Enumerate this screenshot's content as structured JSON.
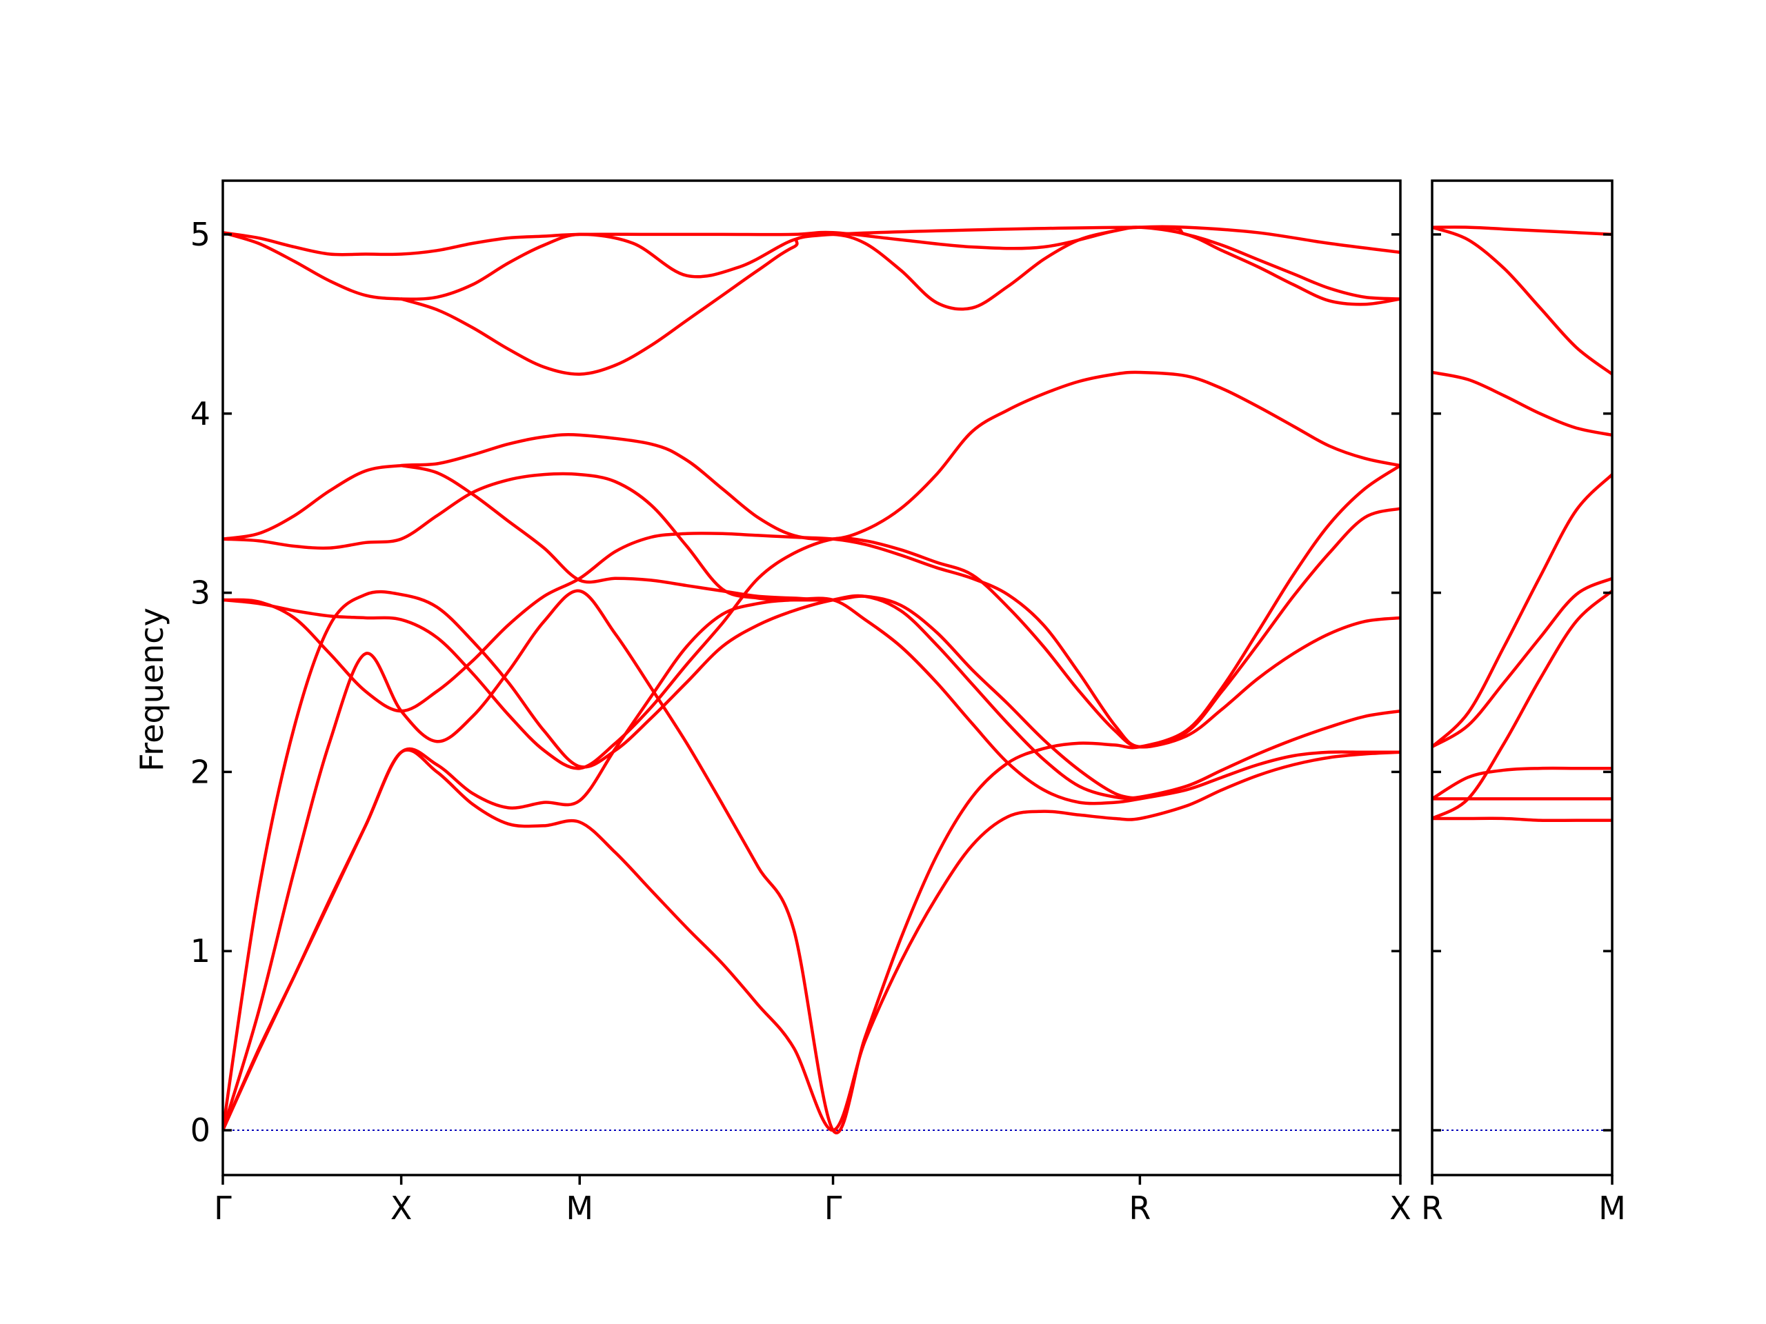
{
  "chart_data": {
    "type": "line",
    "ylabel": "Frequency",
    "ylim": [
      -0.25,
      5.3
    ],
    "yticks": [
      0,
      1,
      2,
      3,
      4,
      5
    ],
    "grid": false,
    "legend": "none",
    "line_color": "#ff0000",
    "zero_line_color": "#0000bb",
    "panels": [
      {
        "name": "main",
        "xlim": [
          0,
          3.3
        ],
        "xticks": [
          {
            "x": 0,
            "label": "Γ"
          },
          {
            "x": 0.5,
            "label": "X"
          },
          {
            "x": 1.0,
            "label": "M"
          },
          {
            "x": 1.71,
            "label": "Γ"
          },
          {
            "x": 2.57,
            "label": "R"
          },
          {
            "x": 3.3,
            "label": "X"
          }
        ],
        "series": [
          {
            "x": [
              0,
              0.1,
              0.2,
              0.3,
              0.4,
              0.5,
              0.6,
              0.7,
              0.8,
              0.9,
              1.0,
              1.2,
              1.4,
              1.6,
              1.71,
              1.9,
              2.1,
              2.3,
              2.5,
              2.57,
              2.7,
              2.9,
              3.1,
              3.3
            ],
            "y": [
              5.01,
              4.98,
              4.93,
              4.89,
              4.89,
              4.89,
              4.91,
              4.95,
              4.98,
              4.99,
              5.0,
              5.0,
              5.0,
              5.0,
              5.01,
              4.97,
              4.93,
              4.93,
              5.02,
              5.04,
              5.04,
              5.01,
              4.95,
              4.9
            ]
          },
          {
            "x": [
              0,
              0.1,
              0.2,
              0.3,
              0.4,
              0.5,
              0.6,
              0.7,
              0.8,
              0.9,
              1.0,
              1.15,
              1.3,
              1.45,
              1.6,
              1.71,
              1.8,
              1.9,
              2.0,
              2.1,
              2.2,
              2.3,
              2.4,
              2.5,
              2.57,
              2.7,
              2.8,
              2.9,
              3.0,
              3.1,
              3.2,
              3.3
            ],
            "y": [
              5.01,
              4.95,
              4.85,
              4.74,
              4.66,
              4.64,
              4.65,
              4.72,
              4.84,
              4.94,
              5.0,
              4.95,
              4.77,
              4.82,
              4.97,
              5.0,
              4.95,
              4.8,
              4.62,
              4.59,
              4.71,
              4.86,
              4.97,
              5.02,
              5.04,
              5.0,
              4.91,
              4.82,
              4.72,
              4.63,
              4.61,
              4.64
            ]
          },
          {
            "x": [
              0.5,
              0.6,
              0.7,
              0.8,
              0.9,
              1.0,
              1.1,
              1.2,
              1.3,
              1.4,
              1.5,
              1.6,
              1.71,
              2.57,
              2.7,
              2.8,
              2.9,
              3.0,
              3.1,
              3.2,
              3.3
            ],
            "y": [
              4.64,
              4.58,
              4.48,
              4.36,
              4.26,
              4.22,
              4.27,
              4.38,
              4.52,
              4.66,
              4.8,
              4.93,
              5.0,
              5.04,
              5.0,
              4.94,
              4.86,
              4.78,
              4.7,
              4.65,
              4.64
            ]
          },
          {
            "x": [
              0,
              0.1,
              0.2,
              0.3,
              0.4,
              0.5,
              0.6,
              0.7,
              0.8,
              0.9,
              1.0,
              1.2,
              1.3,
              1.4,
              1.5,
              1.6,
              1.71,
              1.8,
              1.9,
              2.0,
              2.1,
              2.2,
              2.3,
              2.4,
              2.5,
              2.57,
              2.7,
              2.8,
              2.9,
              3.0,
              3.1,
              3.2,
              3.3
            ],
            "y": [
              3.3,
              3.33,
              3.43,
              3.57,
              3.68,
              3.71,
              3.72,
              3.77,
              3.83,
              3.87,
              3.88,
              3.83,
              3.74,
              3.58,
              3.42,
              3.32,
              3.3,
              3.35,
              3.47,
              3.66,
              3.9,
              4.02,
              4.11,
              4.18,
              4.22,
              4.23,
              4.21,
              4.14,
              4.04,
              3.93,
              3.82,
              3.75,
              3.71
            ]
          },
          {
            "x": [
              0,
              0.1,
              0.2,
              0.3,
              0.4,
              0.5,
              0.6,
              0.7,
              0.8,
              0.9,
              1.0,
              1.1,
              1.2,
              1.3,
              1.4,
              1.5,
              1.6,
              1.71
            ],
            "y": [
              3.3,
              3.29,
              3.26,
              3.25,
              3.28,
              3.3,
              3.43,
              3.56,
              3.63,
              3.66,
              3.66,
              3.62,
              3.49,
              3.26,
              3.02,
              2.97,
              2.96,
              2.96
            ]
          },
          {
            "x": [
              0.5,
              0.6,
              0.7,
              0.8,
              0.9,
              1.0,
              1.1,
              1.2,
              1.3,
              1.4,
              1.5,
              1.6,
              1.71,
              1.8,
              1.9,
              2.0,
              2.1,
              2.2,
              2.3,
              2.4,
              2.5,
              2.57
            ],
            "y": [
              3.71,
              3.67,
              3.55,
              3.4,
              3.25,
              3.07,
              3.08,
              3.07,
              3.04,
              3.01,
              2.98,
              2.97,
              2.96,
              2.98,
              2.93,
              2.78,
              2.57,
              2.38,
              2.18,
              2.01,
              1.88,
              1.85
            ]
          },
          {
            "x": [
              0,
              0.1,
              0.2,
              0.3,
              0.4,
              0.5,
              0.6,
              0.7,
              0.8,
              0.9,
              1.0,
              1.1,
              1.2,
              1.3,
              1.4,
              1.5,
              1.6,
              1.71,
              1.8,
              1.9,
              2.0,
              2.1,
              2.2,
              2.3,
              2.4,
              2.5,
              2.57,
              2.7,
              2.8,
              2.9,
              3.0,
              3.1,
              3.2,
              3.3
            ],
            "y": [
              2.96,
              2.94,
              2.9,
              2.87,
              2.86,
              2.85,
              2.75,
              2.55,
              2.32,
              2.12,
              2.02,
              2.16,
              2.36,
              2.6,
              2.83,
              3.08,
              3.22,
              3.3,
              3.29,
              3.24,
              3.17,
              3.1,
              2.92,
              2.7,
              2.45,
              2.23,
              2.14,
              2.2,
              2.35,
              2.52,
              2.66,
              2.77,
              2.84,
              2.86
            ]
          },
          {
            "x": [
              0,
              0.1,
              0.2,
              0.3,
              0.4,
              0.5,
              0.6,
              0.7,
              0.8,
              0.9,
              1.0,
              1.1,
              1.2,
              1.3,
              1.4,
              1.5,
              1.6,
              1.71,
              1.8,
              1.9,
              2.0,
              2.1,
              2.2,
              2.3,
              2.4,
              2.5,
              2.57,
              2.7,
              2.8,
              2.9,
              3.0,
              3.1,
              3.2,
              3.3
            ],
            "y": [
              2.96,
              2.95,
              2.86,
              2.66,
              2.45,
              2.34,
              2.45,
              2.62,
              2.82,
              2.98,
              3.08,
              3.23,
              3.31,
              3.33,
              3.33,
              3.32,
              3.31,
              3.3,
              3.27,
              3.21,
              3.14,
              3.08,
              2.99,
              2.82,
              2.55,
              2.26,
              2.14,
              2.22,
              2.45,
              2.71,
              2.98,
              3.22,
              3.42,
              3.47
            ]
          },
          {
            "x": [
              0,
              0.1,
              0.2,
              0.3,
              0.4,
              0.5,
              0.6,
              0.7,
              0.8,
              0.9,
              1.0,
              1.1,
              1.2,
              1.3,
              1.4,
              1.5,
              1.6,
              1.71,
              1.8,
              1.9,
              2.0,
              2.1,
              2.2,
              2.3,
              2.4,
              2.5,
              2.57,
              2.7,
              2.8,
              2.9,
              3.0,
              3.1,
              3.2,
              3.3
            ],
            "y": [
              0.0,
              0.66,
              1.45,
              2.17,
              2.66,
              2.34,
              2.17,
              2.31,
              2.56,
              2.84,
              3.01,
              2.77,
              2.47,
              2.16,
              1.82,
              1.47,
              1.12,
              0.0,
              0.52,
              1.07,
              1.53,
              1.86,
              2.05,
              2.13,
              2.16,
              2.15,
              2.14,
              2.23,
              2.47,
              2.78,
              3.1,
              3.38,
              3.58,
              3.71
            ]
          },
          {
            "x": [
              0,
              0.1,
              0.2,
              0.3,
              0.4,
              0.5,
              0.6,
              0.7,
              0.8,
              0.9,
              1.0,
              1.1,
              1.2,
              1.3,
              1.4,
              1.5,
              1.6,
              1.71,
              1.8,
              1.9,
              2.0,
              2.1,
              2.2,
              2.3,
              2.4,
              2.5,
              2.57,
              2.7,
              2.8,
              2.9,
              3.0,
              3.1,
              3.2,
              3.3
            ],
            "y": [
              0.0,
              1.33,
              2.25,
              2.82,
              2.99,
              2.99,
              2.92,
              2.73,
              2.5,
              2.23,
              2.03,
              2.12,
              2.3,
              2.5,
              2.7,
              2.82,
              2.9,
              2.96,
              2.98,
              2.9,
              2.71,
              2.49,
              2.27,
              2.07,
              1.92,
              1.86,
              1.86,
              1.92,
              2.01,
              2.1,
              2.18,
              2.25,
              2.31,
              2.34
            ]
          },
          {
            "x": [
              0,
              0.1,
              0.2,
              0.3,
              0.4,
              0.5,
              0.6,
              0.7,
              0.8,
              0.9,
              1.0,
              1.1,
              1.2,
              1.3,
              1.4,
              1.5,
              1.6,
              1.71,
              1.8,
              1.9,
              2.0,
              2.1,
              2.2,
              2.3,
              2.4,
              2.5,
              2.57,
              2.7,
              2.8,
              2.9,
              3.0,
              3.1,
              3.2,
              3.3
            ],
            "y": [
              0.0,
              0.44,
              0.86,
              1.29,
              1.7,
              2.11,
              2.04,
              1.88,
              1.8,
              1.83,
              1.84,
              2.13,
              2.42,
              2.7,
              2.88,
              2.94,
              2.96,
              2.96,
              2.85,
              2.7,
              2.5,
              2.27,
              2.05,
              1.9,
              1.83,
              1.83,
              1.85,
              1.9,
              1.97,
              2.04,
              2.09,
              2.11,
              2.11,
              2.11
            ]
          },
          {
            "x": [
              0,
              0.1,
              0.2,
              0.3,
              0.4,
              0.5,
              0.6,
              0.7,
              0.8,
              0.9,
              1.0,
              1.1,
              1.2,
              1.3,
              1.4,
              1.5,
              1.6,
              1.71,
              1.8,
              1.9,
              2.0,
              2.1,
              2.2,
              2.3,
              2.4,
              2.5,
              2.57,
              2.7,
              2.8,
              2.9,
              3.0,
              3.1,
              3.2,
              3.3
            ],
            "y": [
              0.0,
              0.45,
              0.86,
              1.28,
              1.7,
              2.11,
              2.0,
              1.82,
              1.71,
              1.7,
              1.72,
              1.55,
              1.34,
              1.13,
              0.93,
              0.7,
              0.46,
              0.0,
              0.5,
              0.94,
              1.3,
              1.59,
              1.75,
              1.78,
              1.76,
              1.74,
              1.74,
              1.81,
              1.9,
              1.98,
              2.04,
              2.08,
              2.1,
              2.11
            ]
          }
        ]
      },
      {
        "name": "side",
        "xlim": [
          0,
          0.5
        ],
        "xticks": [
          {
            "x": 0,
            "label": "R"
          },
          {
            "x": 0.5,
            "label": "M"
          }
        ],
        "series": [
          {
            "x": [
              0,
              0.1,
              0.2,
              0.3,
              0.4,
              0.5
            ],
            "y": [
              5.04,
              5.04,
              5.03,
              5.02,
              5.01,
              5.0
            ]
          },
          {
            "x": [
              0,
              0.1,
              0.2,
              0.3,
              0.4,
              0.5
            ],
            "y": [
              5.04,
              4.97,
              4.81,
              4.59,
              4.37,
              4.22
            ]
          },
          {
            "x": [
              0,
              0.1,
              0.2,
              0.3,
              0.4,
              0.5
            ],
            "y": [
              4.23,
              4.19,
              4.1,
              4.0,
              3.92,
              3.88
            ]
          },
          {
            "x": [
              0,
              0.1,
              0.2,
              0.3,
              0.4,
              0.5
            ],
            "y": [
              2.14,
              2.33,
              2.7,
              3.09,
              3.46,
              3.66
            ]
          },
          {
            "x": [
              0,
              0.1,
              0.2,
              0.3,
              0.4,
              0.5
            ],
            "y": [
              2.14,
              2.26,
              2.5,
              2.75,
              2.99,
              3.08
            ]
          },
          {
            "x": [
              0,
              0.1,
              0.2,
              0.3,
              0.4,
              0.5
            ],
            "y": [
              1.74,
              1.85,
              2.16,
              2.52,
              2.84,
              3.01
            ]
          },
          {
            "x": [
              0,
              0.1,
              0.2,
              0.3,
              0.4,
              0.5
            ],
            "y": [
              1.85,
              1.97,
              2.01,
              2.02,
              2.02,
              2.02
            ]
          },
          {
            "x": [
              0,
              0.1,
              0.2,
              0.3,
              0.4,
              0.5
            ],
            "y": [
              1.85,
              1.85,
              1.85,
              1.85,
              1.85,
              1.85
            ]
          },
          {
            "x": [
              0,
              0.1,
              0.2,
              0.3,
              0.4,
              0.5
            ],
            "y": [
              1.74,
              1.74,
              1.74,
              1.73,
              1.73,
              1.73
            ]
          }
        ]
      }
    ]
  }
}
